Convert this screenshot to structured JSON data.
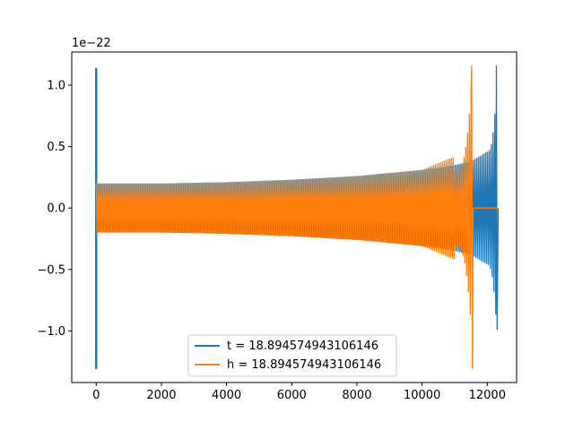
{
  "chart_data": {
    "type": "line",
    "title": "",
    "xlabel": "",
    "ylabel": "",
    "y_offset_label": "1e−22",
    "xlim": [
      -750,
      12900
    ],
    "ylim": [
      -1.42,
      1.27
    ],
    "x_ticks": [
      0,
      2000,
      4000,
      6000,
      8000,
      10000,
      12000
    ],
    "x_tick_labels": [
      "0",
      "2000",
      "4000",
      "6000",
      "8000",
      "10000",
      "12000"
    ],
    "y_ticks": [
      -1.0,
      -0.5,
      0.0,
      0.5,
      1.0
    ],
    "y_tick_labels": [
      "−1.0",
      "−0.5",
      "0.0",
      "0.5",
      "1.0"
    ],
    "grid": false,
    "legend_position": "bottom-center",
    "series": [
      {
        "name": "t = 18.894574943106146",
        "color": "#1f77b4",
        "x_start": 0,
        "x_end": 12300,
        "spike_at_start": {
          "x": 0,
          "max": 1.14,
          "min": -1.31
        },
        "merger": {
          "x": 12280,
          "max": 1.16,
          "min": -0.99
        },
        "envelope": [
          [
            100,
            0.2
          ],
          [
            2000,
            0.2
          ],
          [
            4000,
            0.21
          ],
          [
            6000,
            0.23
          ],
          [
            8000,
            0.26
          ],
          [
            10000,
            0.31
          ],
          [
            11000,
            0.35
          ],
          [
            11500,
            0.38
          ],
          [
            12000,
            0.46
          ],
          [
            12200,
            0.6
          ]
        ]
      },
      {
        "name": "h = 18.894574943106146",
        "color": "#ff7f0e",
        "x_start": 0,
        "x_end": 12300,
        "merger": {
          "x": 11520,
          "max": 1.16,
          "min": -1.31
        },
        "flat_after_merger": 0.0,
        "envelope": [
          [
            0,
            0.2
          ],
          [
            2000,
            0.2
          ],
          [
            4000,
            0.21
          ],
          [
            6000,
            0.23
          ],
          [
            8000,
            0.26
          ],
          [
            10000,
            0.31
          ],
          [
            11000,
            0.42
          ],
          [
            11300,
            0.6
          ],
          [
            11450,
            0.85
          ]
        ]
      }
    ]
  }
}
